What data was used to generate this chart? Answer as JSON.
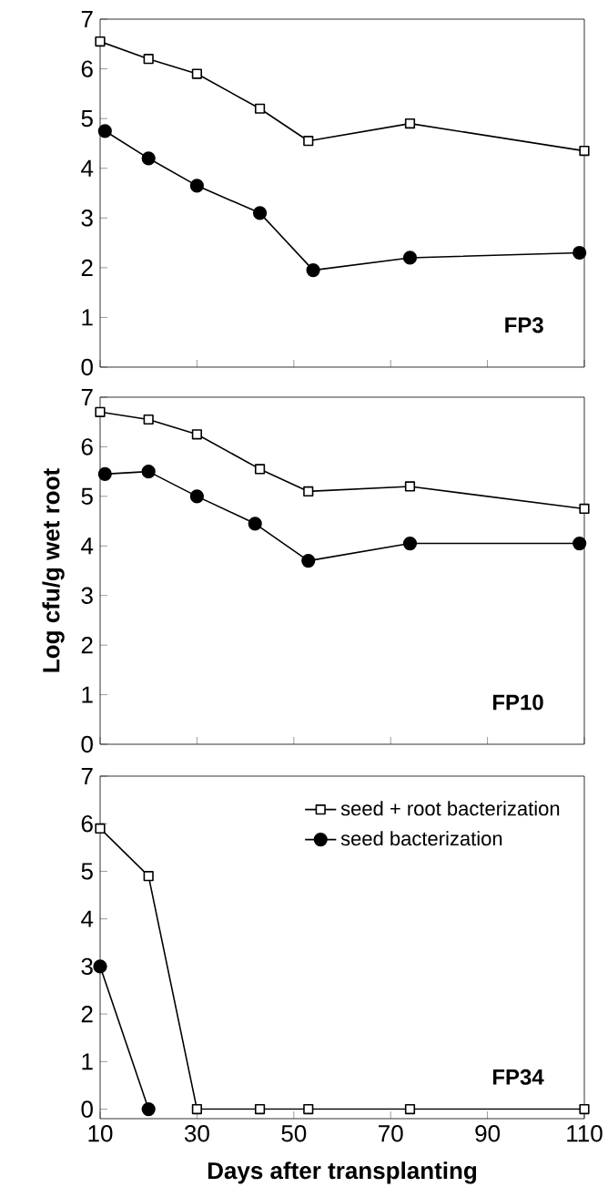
{
  "chart_data": [
    {
      "type": "line",
      "xlim": [
        10,
        110
      ],
      "ylim": [
        0,
        7
      ],
      "xticks": [
        10,
        30,
        50,
        70,
        90,
        110
      ],
      "yticks": [
        0,
        1,
        2,
        3,
        4,
        5,
        6,
        7
      ],
      "tick_labels": "y",
      "legend": false,
      "line_style": "solid",
      "annotations": [
        "FP3"
      ],
      "series": [
        {
          "color": "#000000",
          "marker": "square",
          "x": [
            10,
            20,
            30,
            43,
            53,
            74,
            110
          ],
          "values": [
            6.55,
            6.2,
            5.9,
            5.2,
            4.55,
            4.9,
            4.35
          ]
        },
        {
          "color": "#000000",
          "marker": "circle",
          "x": [
            11,
            20,
            30,
            43,
            54,
            74,
            109
          ],
          "values": [
            4.75,
            4.2,
            3.65,
            3.1,
            1.95,
            2.2,
            2.3
          ]
        }
      ]
    },
    {
      "type": "line",
      "xlim": [
        10,
        110
      ],
      "ylim": [
        0,
        7
      ],
      "xticks": [
        10,
        30,
        50,
        70,
        90,
        110
      ],
      "yticks": [
        0,
        1,
        2,
        3,
        4,
        5,
        6,
        7
      ],
      "tick_labels": "y",
      "legend": false,
      "line_style": "solid",
      "ylabel": "Log cfu/g wet root",
      "annotations": [
        "FP10"
      ],
      "series": [
        {
          "color": "#000000",
          "marker": "square",
          "x": [
            10,
            20,
            30,
            43,
            53,
            74,
            110
          ],
          "values": [
            6.7,
            6.55,
            6.25,
            5.55,
            5.1,
            5.2,
            4.75
          ]
        },
        {
          "color": "#000000",
          "marker": "circle",
          "x": [
            11,
            20,
            30,
            42,
            53,
            74,
            109
          ],
          "values": [
            5.45,
            5.5,
            5.0,
            4.45,
            3.7,
            4.05,
            4.05
          ]
        }
      ]
    },
    {
      "type": "line",
      "xlim": [
        10,
        110
      ],
      "ylim": [
        -0.2,
        7
      ],
      "xticks": [
        10,
        30,
        50,
        70,
        90,
        110
      ],
      "yticks": [
        0,
        1,
        2,
        3,
        4,
        5,
        6,
        7
      ],
      "legend": "top right",
      "line_style": "solid",
      "xlabel": "Days after transplanting",
      "annotations": [
        "FP34"
      ],
      "series": [
        {
          "name": "seed + root bacterization",
          "color": "#000000",
          "marker": "square",
          "x": [
            10,
            20,
            30,
            43,
            53,
            74,
            110
          ],
          "values": [
            5.9,
            4.9,
            0,
            0,
            0,
            0,
            0
          ]
        },
        {
          "name": "seed bacterization",
          "color": "#000000",
          "marker": "circle",
          "x": [
            10,
            20
          ],
          "values": [
            3.0,
            0
          ]
        }
      ]
    }
  ]
}
